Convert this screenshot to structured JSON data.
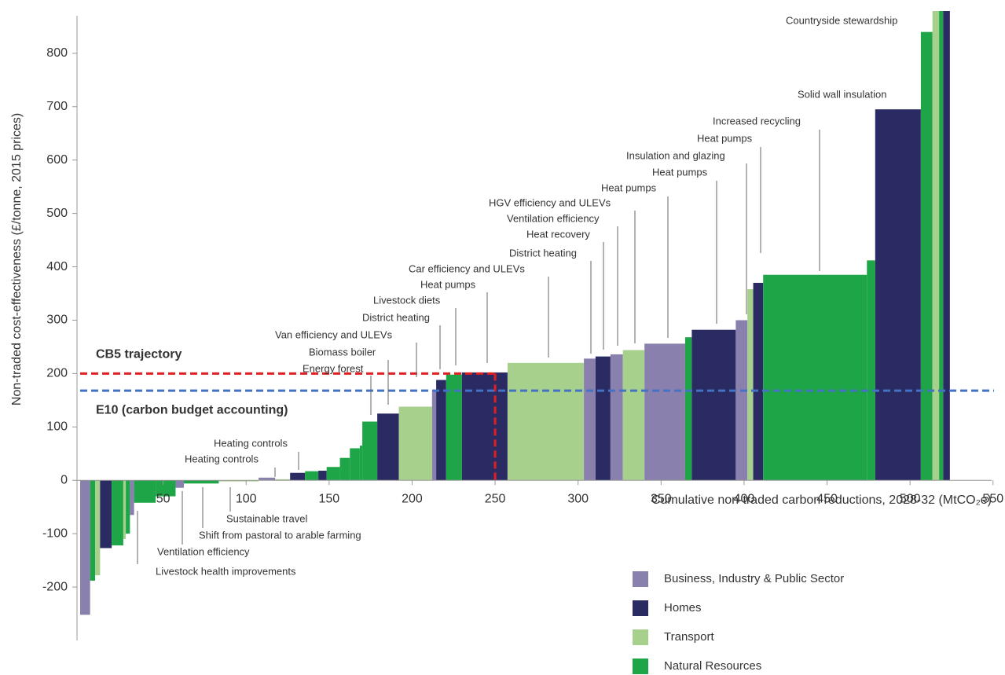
{
  "chart_data": {
    "type": "marginal-cost-curve",
    "xlabel": "Cumulative non-traded carbon reductions, 2028-32 (MtCO₂e)",
    "ylabel": "Non-traded cost-effectiveness (£/tonne, 2015 prices)",
    "xlim": [
      0,
      552
    ],
    "ylim": [
      -300,
      880
    ],
    "xticks": [
      50,
      100,
      150,
      200,
      250,
      300,
      350,
      400,
      450,
      500,
      550
    ],
    "yticks": [
      -200,
      -100,
      0,
      100,
      200,
      300,
      400,
      500,
      600,
      700,
      800
    ],
    "series": [
      {
        "name": "Business, Industry & Public Sector",
        "color": "#8a80ad"
      },
      {
        "name": "Homes",
        "color": "#2b2b63"
      },
      {
        "name": "Transport",
        "color": "#a8d08d"
      },
      {
        "name": "Natural Resources",
        "color": "#1ea547"
      }
    ],
    "bars": [
      {
        "series": 0,
        "width": 6,
        "value": -252
      },
      {
        "series": 3,
        "width": 3,
        "value": -188
      },
      {
        "series": 2,
        "width": 3,
        "value": -178
      },
      {
        "series": 1,
        "width": 7,
        "value": -127
      },
      {
        "series": 3,
        "width": 7,
        "value": -122
      },
      {
        "series": 2,
        "width": 1.5,
        "value": -110
      },
      {
        "series": 3,
        "width": 2.5,
        "value": -100
      },
      {
        "series": 0,
        "width": 2.5,
        "value": -65
      },
      {
        "series": 3,
        "width": 13,
        "value": -42
      },
      {
        "series": 3,
        "width": 12,
        "value": -30
      },
      {
        "series": 0,
        "width": 5,
        "value": -14
      },
      {
        "series": 3,
        "width": 21,
        "value": -6
      },
      {
        "series": 2,
        "width": 24,
        "value": -2
      },
      {
        "series": 0,
        "width": 10,
        "value": 5
      },
      {
        "series": 2,
        "width": 9,
        "value": 2
      },
      {
        "series": 1,
        "width": 9,
        "value": 14
      },
      {
        "series": 3,
        "width": 8,
        "value": 17
      },
      {
        "series": 1,
        "width": 5,
        "value": 18
      },
      {
        "series": 3,
        "width": 8,
        "value": 25
      },
      {
        "series": 3,
        "width": 6,
        "value": 42
      },
      {
        "series": 3,
        "width": 6,
        "value": 60
      },
      {
        "series": 3,
        "width": 1.5,
        "value": 65
      },
      {
        "series": 3,
        "width": 9,
        "value": 110
      },
      {
        "series": 1,
        "width": 13,
        "value": 125
      },
      {
        "series": 2,
        "width": 20,
        "value": 138
      },
      {
        "series": 0,
        "width": 2.5,
        "value": 168
      },
      {
        "series": 1,
        "width": 6,
        "value": 188
      },
      {
        "series": 3,
        "width": 9.5,
        "value": 198
      },
      {
        "series": 1,
        "width": 27.5,
        "value": 202
      },
      {
        "series": 2,
        "width": 46,
        "value": 220
      },
      {
        "series": 0,
        "width": 7,
        "value": 228
      },
      {
        "series": 1,
        "width": 9,
        "value": 232
      },
      {
        "series": 0,
        "width": 7.5,
        "value": 236
      },
      {
        "series": 2,
        "width": 13,
        "value": 244
      },
      {
        "series": 0,
        "width": 24.5,
        "value": 256
      },
      {
        "series": 3,
        "width": 4,
        "value": 268
      },
      {
        "series": 1,
        "width": 26.5,
        "value": 282
      },
      {
        "series": 0,
        "width": 7,
        "value": 300
      },
      {
        "series": 2,
        "width": 3.5,
        "value": 358
      },
      {
        "series": 1,
        "width": 6,
        "value": 370
      },
      {
        "series": 3,
        "width": 62.5,
        "value": 385
      },
      {
        "series": 3,
        "width": 5,
        "value": 412
      },
      {
        "series": 1,
        "width": 27.5,
        "value": 695
      },
      {
        "series": 3,
        "width": 7,
        "value": 840
      },
      {
        "series": 2,
        "width": 4,
        "value": 900
      },
      {
        "series": 3,
        "width": 2.5,
        "value": 900
      },
      {
        "series": 1,
        "width": 4,
        "value": 900
      }
    ],
    "reference_lines": [
      {
        "label": "CB5 trajectory",
        "value": 200,
        "x": 250,
        "color": "#e02020"
      },
      {
        "label": "E10 (carbon budget accounting)",
        "value": 168,
        "color": "#4472c4"
      }
    ],
    "annotations": [
      "Countryside stewardship",
      "Solid wall insulation",
      "Increased recycling",
      "Heat pumps",
      "Insulation and glazing",
      "Heat pumps",
      "Heat pumps",
      "HGV efficiency and ULEVs",
      "Ventilation efficiency",
      "Heat recovery",
      "District heating",
      "Car efficiency and ULEVs",
      "Heat pumps",
      "Livestock diets",
      "District heating",
      "Van efficiency and ULEVs",
      "Biomass boiler",
      "Energy forest",
      "Heating controls",
      "Heating controls",
      "Sustainable travel",
      "Shift from pastoral to arable farming",
      "Ventilation efficiency",
      "Livestock health improvements"
    ]
  }
}
